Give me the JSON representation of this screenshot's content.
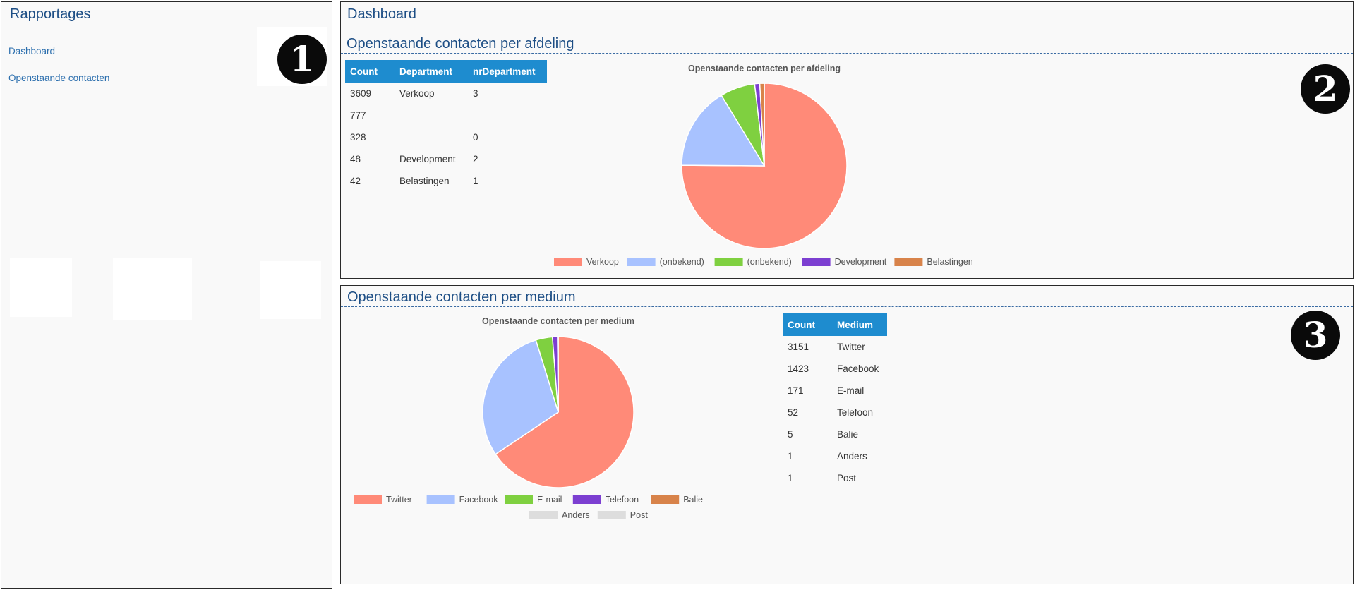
{
  "sidebar": {
    "title": "Rapportages",
    "links": [
      "Dashboard",
      "Openstaande contacten"
    ],
    "badge": "1"
  },
  "dashboard": {
    "title": "Dashboard",
    "badge": "2",
    "section_title": "Openstaande contacten per afdeling",
    "table": {
      "headers": [
        "Count",
        "Department",
        "nrDepartment"
      ],
      "rows": [
        [
          "3609",
          "Verkoop",
          "3"
        ],
        [
          "777",
          "",
          ""
        ],
        [
          "328",
          "",
          "0"
        ],
        [
          "48",
          "Development",
          "2"
        ],
        [
          "42",
          "Belastingen",
          "1"
        ]
      ]
    }
  },
  "medium": {
    "badge": "3",
    "section_title": "Openstaande contacten per medium",
    "table": {
      "headers": [
        "Count",
        "Medium"
      ],
      "rows": [
        [
          "3151",
          "Twitter"
        ],
        [
          "1423",
          "Facebook"
        ],
        [
          "171",
          "E-mail"
        ],
        [
          "52",
          "Telefoon"
        ],
        [
          "5",
          "Balie"
        ],
        [
          "1",
          "Anders"
        ],
        [
          "1",
          "Post"
        ]
      ]
    }
  },
  "chart_data": [
    {
      "type": "pie",
      "title": "Openstaande contacten per afdeling",
      "labels": [
        "Verkoop",
        "(onbekend)",
        "(onbekend)",
        "Development",
        "Belastingen"
      ],
      "values": [
        3609,
        777,
        328,
        48,
        42
      ],
      "colors": [
        "#ff8a78",
        "#a8c2ff",
        "#7fd040",
        "#7c3fd1",
        "#d8834a"
      ],
      "legend": "bottom"
    },
    {
      "type": "pie",
      "title": "Openstaande contacten per medium",
      "labels": [
        "Twitter",
        "Facebook",
        "E-mail",
        "Telefoon",
        "Balie",
        "Anders",
        "Post"
      ],
      "values": [
        3151,
        1423,
        171,
        52,
        5,
        1,
        1
      ],
      "colors": [
        "#ff8a78",
        "#a8c2ff",
        "#7fd040",
        "#7c3fd1",
        "#d8834a",
        "#dddddd",
        "#dddddd"
      ],
      "legend": "bottom"
    }
  ]
}
